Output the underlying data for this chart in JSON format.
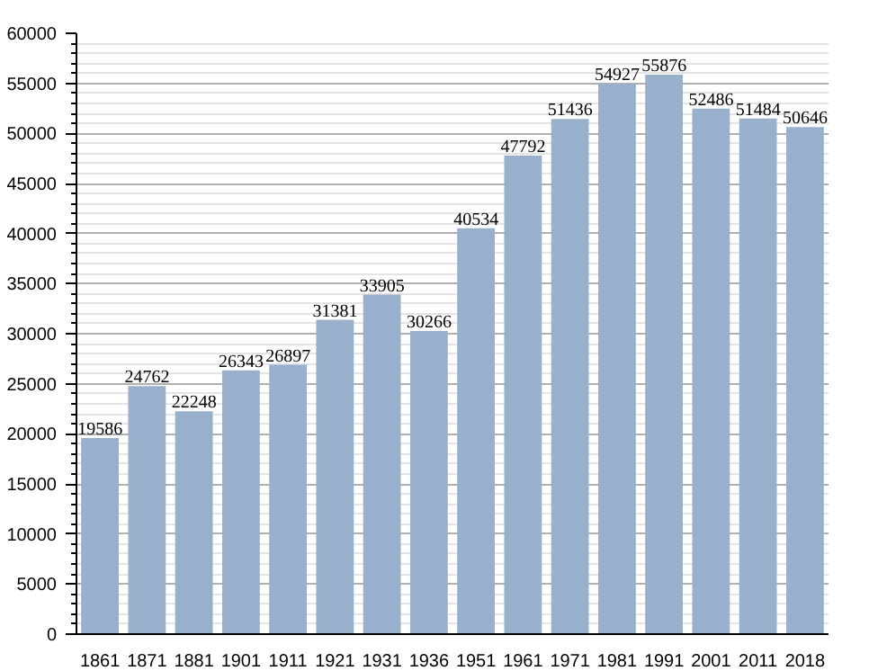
{
  "chart_data": {
    "type": "bar",
    "categories": [
      "1861",
      "1871",
      "1881",
      "1901",
      "1911",
      "1921",
      "1931",
      "1936",
      "1951",
      "1961",
      "1971",
      "1981",
      "1991",
      "2001",
      "2011",
      "2018"
    ],
    "values": [
      19586,
      24762,
      22248,
      26343,
      26897,
      31381,
      33905,
      30266,
      40534,
      47792,
      51436,
      54927,
      55876,
      52486,
      51484,
      50646
    ],
    "color": "#98b0cc",
    "ylim": [
      0,
      60000
    ],
    "yticks": [
      0,
      5000,
      10000,
      15000,
      20000,
      25000,
      30000,
      35000,
      40000,
      45000,
      50000,
      55000,
      60000
    ],
    "grid": "y",
    "data_labels": true
  }
}
